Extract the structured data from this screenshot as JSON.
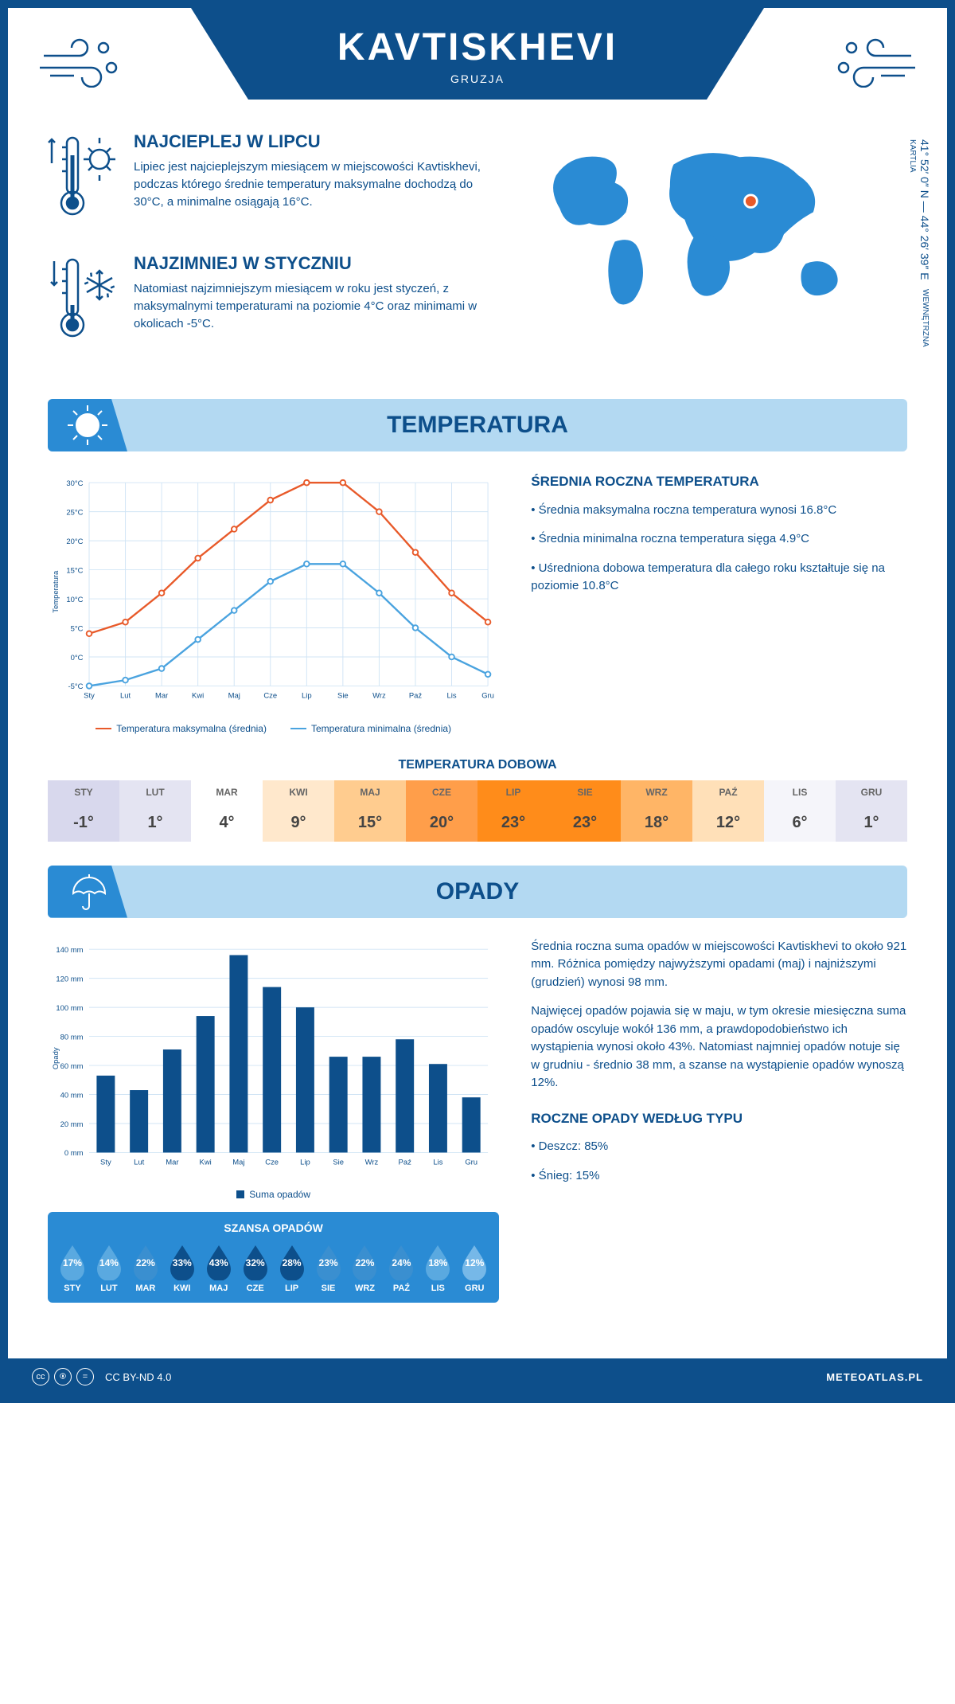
{
  "header": {
    "title": "KAVTISKHEVI",
    "country": "GRUZJA"
  },
  "coords": {
    "text": "41° 52′ 0″ N — 44° 26′ 39″ E",
    "region": "WEWNĘTRZNA KARTLIA"
  },
  "colors": {
    "primary": "#0d4f8b",
    "accent": "#2a8bd4",
    "light": "#b3d9f2",
    "max_line": "#e85a2a",
    "min_line": "#4aa3df",
    "bar": "#0d4f8b",
    "grid": "#d0e4f5"
  },
  "hot": {
    "title": "NAJCIEPLEJ W LIPCU",
    "text": "Lipiec jest najcieplejszym miesiącem w miejscowości Kavtiskhevi, podczas którego średnie temperatury maksymalne dochodzą do 30°C, a minimalne osiągają 16°C."
  },
  "cold": {
    "title": "NAJZIMNIEJ W STYCZNIU",
    "text": "Natomiast najzimniejszym miesiącem w roku jest styczeń, z maksymalnymi temperaturami na poziomie 4°C oraz minimami w okolicach -5°C."
  },
  "temp_section": {
    "header": "TEMPERATURA",
    "months": [
      "Sty",
      "Lut",
      "Mar",
      "Kwi",
      "Maj",
      "Cze",
      "Lip",
      "Sie",
      "Wrz",
      "Paź",
      "Lis",
      "Gru"
    ],
    "max_series": [
      4,
      6,
      11,
      17,
      22,
      27,
      30,
      30,
      25,
      18,
      11,
      6
    ],
    "min_series": [
      -5,
      -4,
      -2,
      3,
      8,
      13,
      16,
      16,
      11,
      5,
      0,
      -3
    ],
    "y_min": -5,
    "y_max": 30,
    "y_step": 5,
    "y_label": "Temperatura",
    "legend_max": "Temperatura maksymalna (średnia)",
    "legend_min": "Temperatura minimalna (średnia)",
    "desc_title": "ŚREDNIA ROCZNA TEMPERATURA",
    "desc": [
      "• Średnia maksymalna roczna temperatura wynosi 16.8°C",
      "• Średnia minimalna roczna temperatura sięga 4.9°C",
      "• Uśredniona dobowa temperatura dla całego roku kształtuje się na poziomie 10.8°C"
    ],
    "daily_title": "TEMPERATURA DOBOWA",
    "daily_months": [
      "STY",
      "LUT",
      "MAR",
      "KWI",
      "MAJ",
      "CZE",
      "LIP",
      "SIE",
      "WRZ",
      "PAŹ",
      "LIS",
      "GRU"
    ],
    "daily_vals": [
      "-1°",
      "1°",
      "4°",
      "9°",
      "15°",
      "20°",
      "23°",
      "23°",
      "18°",
      "12°",
      "6°",
      "1°"
    ],
    "daily_bg": [
      "#d8d8ed",
      "#e4e4f2",
      "#ffffff",
      "#ffe8cc",
      "#ffcc8f",
      "#ff9e4a",
      "#ff8c1a",
      "#ff8c1a",
      "#ffb566",
      "#ffe0b8",
      "#f5f5fa",
      "#e4e4f2"
    ]
  },
  "precip_section": {
    "header": "OPADY",
    "months": [
      "Sty",
      "Lut",
      "Mar",
      "Kwi",
      "Maj",
      "Cze",
      "Lip",
      "Sie",
      "Wrz",
      "Paź",
      "Lis",
      "Gru"
    ],
    "values": [
      53,
      43,
      71,
      94,
      136,
      114,
      100,
      66,
      66,
      78,
      61,
      38
    ],
    "y_max": 140,
    "y_step": 20,
    "y_label": "Opady",
    "legend": "Suma opadów",
    "desc": [
      "Średnia roczna suma opadów w miejscowości Kavtiskhevi to około 921 mm. Różnica pomiędzy najwyższymi opadami (maj) i najniższymi (grudzień) wynosi 98 mm.",
      "Najwięcej opadów pojawia się w maju, w tym okresie miesięczna suma opadów oscyluje wokół 136 mm, a prawdopodobieństwo ich wystąpienia wynosi około 43%. Natomiast najmniej opadów notuje się w grudniu - średnio 38 mm, a szanse na wystąpienie opadów wynoszą 12%."
    ],
    "chance_title": "SZANSA OPADÓW",
    "chance_months": [
      "STY",
      "LUT",
      "MAR",
      "KWI",
      "MAJ",
      "CZE",
      "LIP",
      "SIE",
      "WRZ",
      "PAŹ",
      "LIS",
      "GRU"
    ],
    "chance_vals": [
      "17%",
      "14%",
      "22%",
      "33%",
      "43%",
      "32%",
      "28%",
      "23%",
      "22%",
      "24%",
      "18%",
      "12%"
    ],
    "chance_colors": [
      "#5aa9e0",
      "#5aa9e0",
      "#3a8fd0",
      "#0d4f8b",
      "#0d4f8b",
      "#0d4f8b",
      "#0d4f8b",
      "#3a8fd0",
      "#3a8fd0",
      "#3a8fd0",
      "#5aa9e0",
      "#76b8e8"
    ],
    "type_title": "ROCZNE OPADY WEDŁUG TYPU",
    "type_lines": [
      "• Deszcz: 85%",
      "• Śnieg: 15%"
    ]
  },
  "footer": {
    "license": "CC BY-ND 4.0",
    "brand": "METEOATLAS.PL"
  }
}
